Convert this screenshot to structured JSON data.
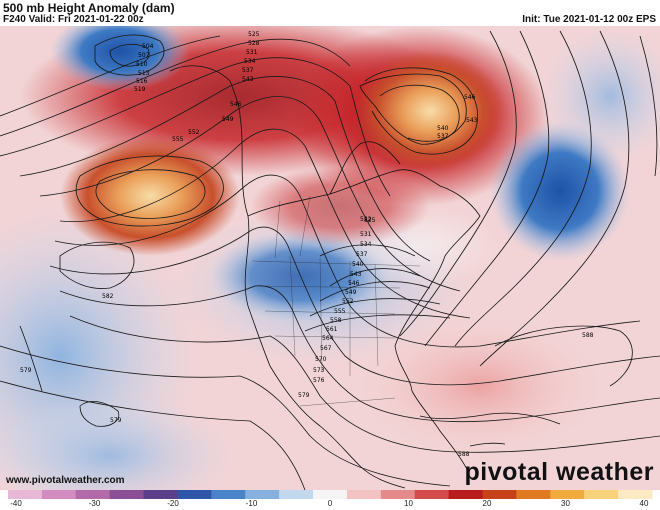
{
  "header": {
    "title": "500 mb Height Anomaly (dam)",
    "valid": "F240 Valid: Fri 2021-01-22 00z",
    "init": "Init: Tue 2021-01-12 00z EPS"
  },
  "footer": {
    "website": "www.pivotalweather.com",
    "brand": "pivotal weather"
  },
  "contour_labels": [
    "504",
    "507",
    "510",
    "513",
    "516",
    "519",
    "522",
    "525",
    "528",
    "531",
    "534",
    "537",
    "540",
    "543",
    "546",
    "549",
    "552",
    "555",
    "558",
    "561",
    "564",
    "567",
    "570",
    "573",
    "576",
    "579",
    "582",
    "588",
    "546",
    "543",
    "540",
    "537",
    "579",
    "579"
  ],
  "colorbar": {
    "ticks": [
      "-40",
      "-30",
      "-20",
      "-10",
      "0",
      "10",
      "20",
      "30",
      "40"
    ],
    "colors": [
      "#e9b8d6",
      "#d28cbf",
      "#b26aa8",
      "#8b4f95",
      "#5b3f8a",
      "#2f55a8",
      "#4b83c8",
      "#86b1de",
      "#c1d8ef",
      "#f5f5f5",
      "#f3c3c3",
      "#e58a8a",
      "#d44b4b",
      "#b91c1c",
      "#c7421a",
      "#e07a22",
      "#f0aa3e",
      "#f8d27a",
      "#fcebc2"
    ]
  }
}
